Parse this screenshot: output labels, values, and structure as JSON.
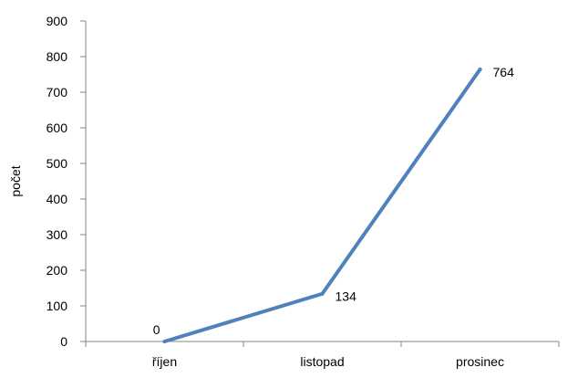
{
  "chart_data": {
    "type": "line",
    "categories": [
      "říjen",
      "listopad",
      "prosinec"
    ],
    "series": [
      {
        "values": [
          0,
          134,
          764
        ],
        "color": "#4f81bd"
      }
    ],
    "data_labels": [
      "0",
      "134",
      "764"
    ],
    "title": "",
    "xlabel": "",
    "ylabel": "počet",
    "ylim": [
      0,
      900
    ],
    "yticks": [
      0,
      100,
      200,
      300,
      400,
      500,
      600,
      700,
      800,
      900
    ],
    "ytick_labels": [
      "0",
      "100",
      "200",
      "300",
      "400",
      "500",
      "600",
      "700",
      "800",
      "900"
    ],
    "grid": false,
    "legend": "none",
    "axis_color": "#868686"
  }
}
